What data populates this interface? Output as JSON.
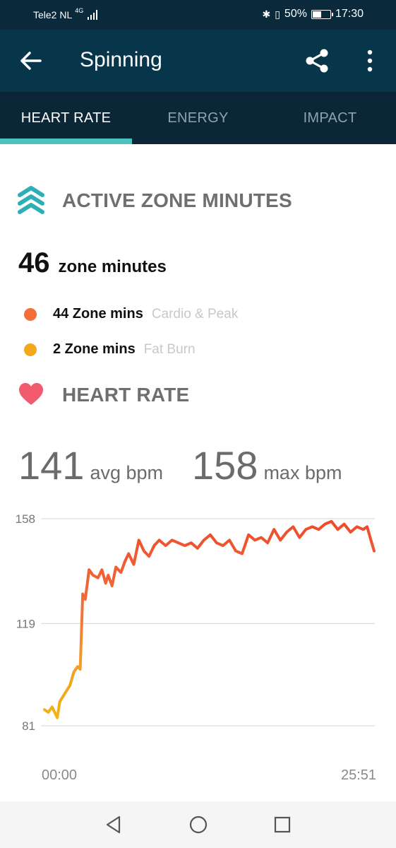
{
  "status_bar": {
    "carrier": "Tele2 NL",
    "network": "4G",
    "battery": "50%",
    "time": "17:30"
  },
  "app_bar": {
    "title": "Spinning",
    "back_icon": "arrow-left-icon",
    "share_icon": "share-icon",
    "more_icon": "more-vertical-icon"
  },
  "tabs": [
    {
      "label": "HEART RATE",
      "active": true
    },
    {
      "label": "ENERGY",
      "active": false
    },
    {
      "label": "IMPACT",
      "active": false
    }
  ],
  "active_zone_minutes": {
    "title": "ACTIVE ZONE MINUTES",
    "icon": "zone-chevrons-icon",
    "total_value": "46",
    "total_unit": "zone minutes",
    "zones": [
      {
        "minutes": "44 Zone mins",
        "label": "Cardio & Peak",
        "color": "#f26f3a"
      },
      {
        "minutes": "2 Zone mins",
        "label": "Fat Burn",
        "color": "#f0a91c"
      }
    ]
  },
  "heart_rate": {
    "title": "HEART RATE",
    "icon": "heart-icon",
    "avg_value": "141",
    "avg_label": "avg bpm",
    "max_value": "158",
    "max_label": "max bpm"
  },
  "colors": {
    "header": "#073549",
    "tab_bar": "#0b2737",
    "accent": "#4cc1bf",
    "cardio": "#f26f3a",
    "fat_burn": "#f0a91c",
    "peak_line": "#ee4b2b",
    "heart": "#f25b6e"
  },
  "chart_data": {
    "type": "line",
    "title": "",
    "xlabel": "",
    "ylabel": "",
    "y_ticks": [
      "158",
      "119",
      "81"
    ],
    "y_tick_values": [
      158,
      119,
      81
    ],
    "ylim": [
      81,
      158
    ],
    "x_tick_labels": [
      "00:00",
      "25:51"
    ],
    "xlim_minutes": [
      0,
      25.85
    ],
    "grid": true,
    "series": [
      {
        "x": [
          0,
          0.3,
          0.6,
          1.0,
          1.2,
          1.6,
          2.0,
          2.3,
          2.6,
          2.8,
          3.0,
          3.2,
          3.5,
          3.8,
          4.2,
          4.5,
          4.8,
          5.0,
          5.3,
          5.6,
          6.0,
          6.3,
          6.6,
          7.0,
          7.4,
          7.8,
          8.2,
          8.6,
          9.0,
          9.5,
          10.0,
          10.5,
          11.0,
          11.5,
          12.0,
          12.5,
          13.0,
          13.5,
          14.0,
          14.5,
          15.0,
          15.5,
          16.0,
          16.5,
          17.0,
          17.5,
          18.0,
          18.5,
          19.0,
          19.5,
          20.0,
          20.5,
          21.0,
          21.5,
          22.0,
          22.5,
          23.0,
          23.5,
          24.0,
          24.5,
          25.0,
          25.3,
          25.6,
          25.85
        ],
        "y": [
          87,
          86,
          88,
          84,
          90,
          93,
          96,
          101,
          103,
          102,
          130,
          128,
          139,
          137,
          136,
          139,
          134,
          137,
          133,
          140,
          138,
          142,
          145,
          141,
          150,
          146,
          144,
          148,
          150,
          148,
          150,
          149,
          148,
          149,
          147,
          150,
          152,
          149,
          148,
          150,
          146,
          145,
          152,
          150,
          151,
          149,
          154,
          150,
          153,
          155,
          151,
          154,
          155,
          154,
          156,
          157,
          154,
          156,
          153,
          155,
          154,
          155,
          150,
          146
        ]
      }
    ]
  },
  "nav_bar": {
    "back_icon": "nav-back-triangle-icon",
    "home_icon": "nav-home-circle-icon",
    "recents_icon": "nav-recents-square-icon"
  }
}
